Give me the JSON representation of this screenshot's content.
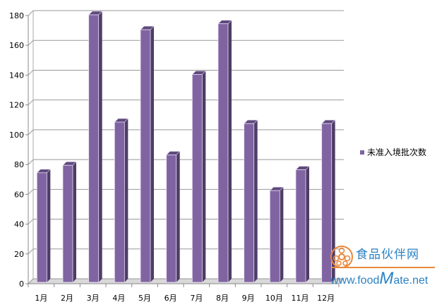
{
  "chart_data": {
    "type": "bar",
    "style": "3d-clustered-column",
    "categories": [
      "1月",
      "2月",
      "3月",
      "4月",
      "5月",
      "6月",
      "7月",
      "8月",
      "9月",
      "10月",
      "11月",
      "12月"
    ],
    "series": [
      {
        "name": "未准入境批次数",
        "values": [
          74,
          79,
          180,
          108,
          170,
          86,
          140,
          174,
          107,
          62,
          76,
          107
        ],
        "color": "#8064a2"
      }
    ],
    "ylim": [
      0,
      180
    ],
    "yticks": [
      0,
      20,
      40,
      60,
      80,
      100,
      120,
      140,
      160,
      180
    ],
    "grid": true,
    "legend_position": "right"
  },
  "legend": {
    "label": "未准入境批次数"
  },
  "watermark": {
    "name": "食品伙伴网",
    "url_prefix": "www.food",
    "url_m": "M",
    "url_suffix": "ate.net"
  }
}
